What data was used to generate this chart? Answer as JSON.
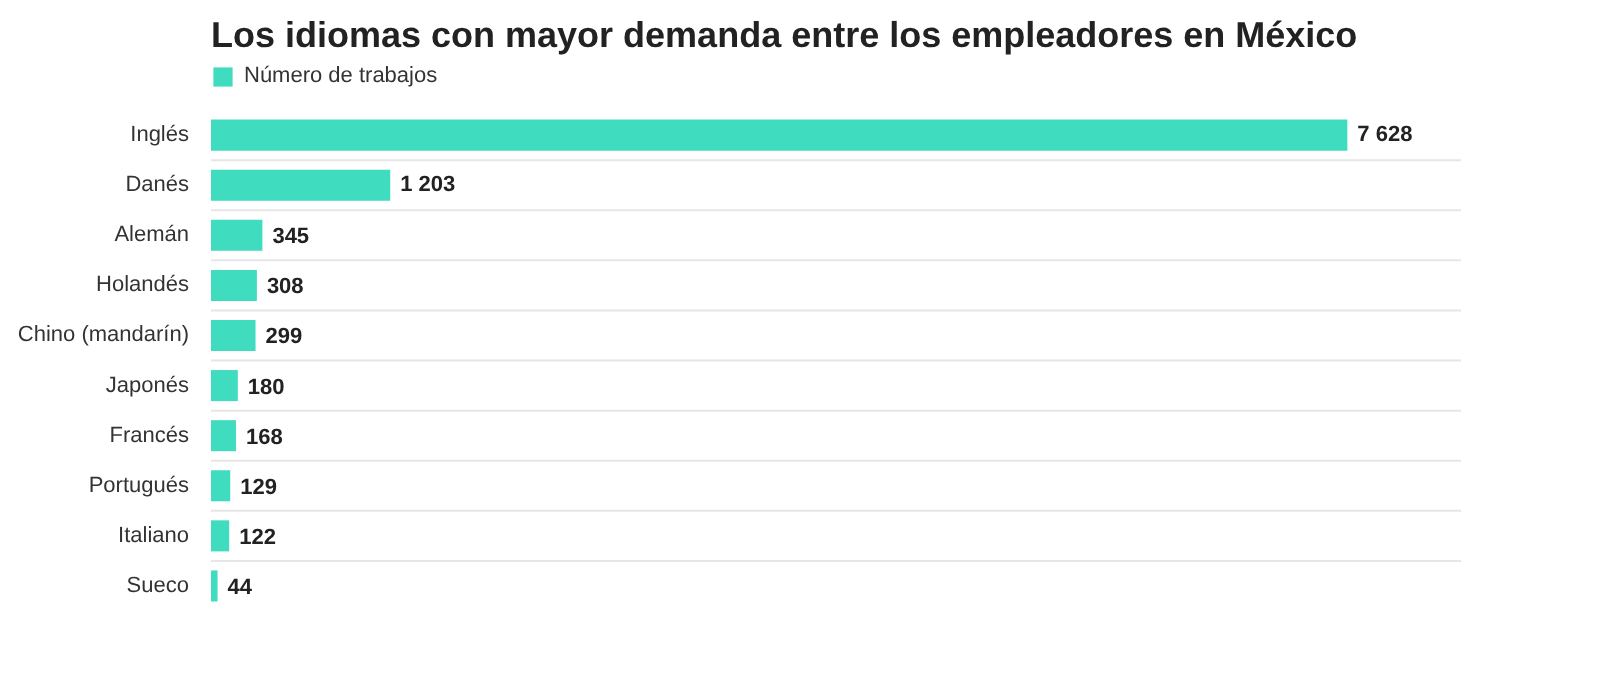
{
  "chart_data": {
    "type": "bar",
    "orientation": "horizontal",
    "title": "Los idiomas con mayor demanda entre los empleadores en México",
    "categories": [
      "Inglés",
      "Danés",
      "Alemán",
      "Holandés",
      "Chino (mandarín)",
      "Japonés",
      "Francés",
      "Portugués",
      "Italiano",
      "Sueco"
    ],
    "series": [
      {
        "name": "Número de trabajos",
        "color": "#3fdcc0",
        "values": [
          7628,
          1203,
          345,
          308,
          299,
          180,
          168,
          129,
          122,
          44
        ]
      }
    ],
    "data_labels": true,
    "legend": "top left",
    "grid": false
  }
}
